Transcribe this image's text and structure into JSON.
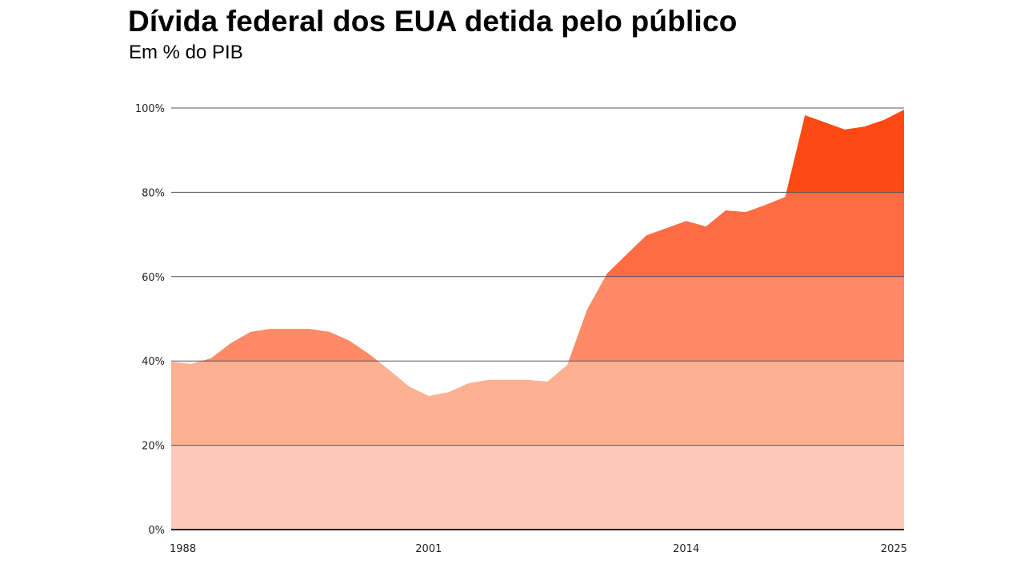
{
  "chart_data": {
    "type": "area",
    "title": "Dívida federal dos EUA detida pelo público",
    "subtitle": "Em % do PIB",
    "xlabel": "",
    "ylabel": "",
    "x": [
      1988,
      1989,
      1990,
      1991,
      1992,
      1993,
      1994,
      1995,
      1996,
      1997,
      1998,
      1999,
      2000,
      2001,
      2002,
      2003,
      2004,
      2005,
      2006,
      2007,
      2008,
      2009,
      2010,
      2011,
      2012,
      2013,
      2014,
      2015,
      2016,
      2017,
      2018,
      2019,
      2020,
      2021,
      2022,
      2023,
      2024,
      2025
    ],
    "values": [
      39.8,
      39.3,
      40.6,
      44.2,
      46.9,
      47.6,
      47.6,
      47.6,
      46.9,
      44.8,
      41.6,
      37.9,
      34.0,
      31.7,
      32.6,
      34.7,
      35.5,
      35.5,
      35.5,
      35.1,
      39.1,
      52.2,
      60.7,
      65.3,
      69.8,
      71.5,
      73.2,
      71.9,
      75.7,
      75.3,
      77.0,
      78.9,
      98.3,
      96.6,
      94.9,
      95.6,
      97.2,
      99.6
    ],
    "xlim": [
      1988,
      2025
    ],
    "ylim": [
      0,
      100
    ],
    "x_ticks": [
      "1988",
      "2001",
      "2014",
      "2025"
    ],
    "y_ticks": [
      "0%",
      "20%",
      "40%",
      "60%",
      "80%",
      "100%"
    ],
    "grid": true,
    "band_colors": [
      "#fec8b8",
      "#fdb092",
      "#fe8a66",
      "#ff6b42",
      "#ff4914"
    ],
    "grid_color": "#555555"
  }
}
